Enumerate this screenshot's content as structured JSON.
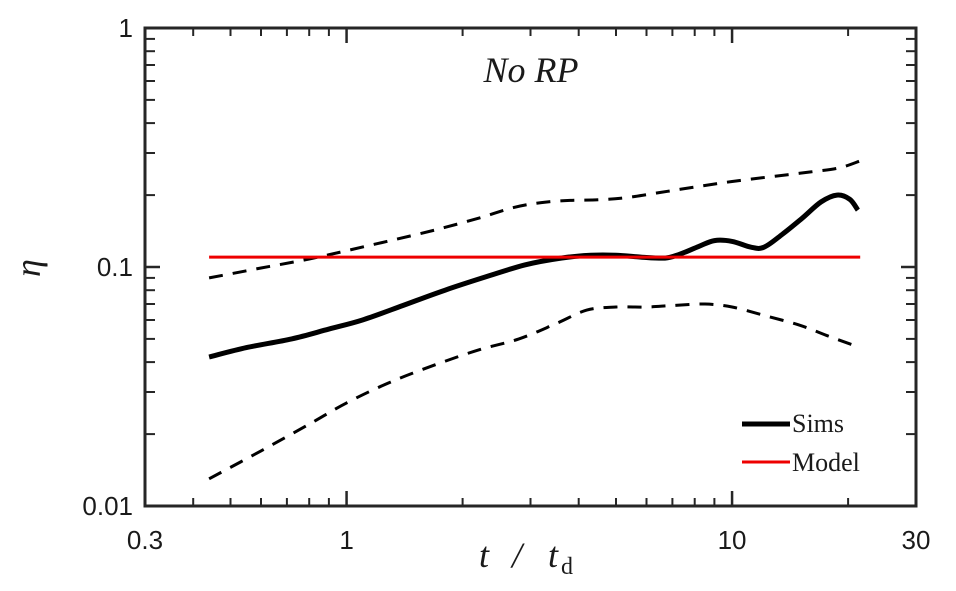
{
  "chart_data": {
    "type": "line",
    "title": "No RP",
    "xlabel_main": "t",
    "xlabel_sep": "/",
    "xlabel_denom": "t",
    "xlabel_sub": "d",
    "ylabel": "η",
    "xscale": "log",
    "yscale": "log",
    "xlim": [
      0.3,
      30
    ],
    "ylim": [
      0.01,
      1
    ],
    "xticks": [
      {
        "value": 0.3,
        "label": "0.3"
      },
      {
        "value": 1,
        "label": "1"
      },
      {
        "value": 10,
        "label": "10"
      },
      {
        "value": 30,
        "label": "30"
      }
    ],
    "yticks": [
      {
        "value": 0.01,
        "label": "0.01"
      },
      {
        "value": 0.1,
        "label": "0.1"
      },
      {
        "value": 1,
        "label": "1"
      }
    ],
    "legend_position": "bottom-right",
    "series": [
      {
        "name": "Sims",
        "style": "solid-thick",
        "color": "#000000",
        "x": [
          0.44,
          0.55,
          0.72,
          0.9,
          1.1,
          1.4,
          1.8,
          2.3,
          2.9,
          3.6,
          4.3,
          5.0,
          5.8,
          6.7,
          7.3,
          8.2,
          9.0,
          10.0,
          11.2,
          12.1,
          13.5,
          15.2,
          17.0,
          18.7,
          20.2,
          21.2
        ],
        "values": [
          0.042,
          0.046,
          0.05,
          0.055,
          0.06,
          0.069,
          0.08,
          0.091,
          0.102,
          0.109,
          0.112,
          0.112,
          0.11,
          0.109,
          0.113,
          0.122,
          0.129,
          0.128,
          0.121,
          0.121,
          0.137,
          0.16,
          0.187,
          0.2,
          0.192,
          0.173
        ]
      },
      {
        "name": "Sims upper",
        "style": "dashed",
        "color": "#000000",
        "x": [
          0.44,
          0.6,
          0.8,
          1.0,
          1.3,
          1.7,
          2.2,
          2.7,
          3.2,
          3.8,
          4.5,
          5.3,
          6.5,
          8.0,
          10.0,
          13.0,
          16.0,
          19.0,
          21.5
        ],
        "values": [
          0.09,
          0.099,
          0.108,
          0.117,
          0.129,
          0.143,
          0.16,
          0.177,
          0.186,
          0.19,
          0.191,
          0.195,
          0.205,
          0.216,
          0.228,
          0.24,
          0.25,
          0.26,
          0.278
        ]
      },
      {
        "name": "Sims lower",
        "style": "dashed",
        "color": "#000000",
        "x": [
          0.44,
          0.6,
          0.8,
          1.0,
          1.3,
          1.7,
          2.2,
          2.8,
          3.5,
          4.2,
          5.0,
          6.0,
          7.0,
          8.5,
          10.0,
          12.0,
          15.0,
          18.0,
          21.5
        ],
        "values": [
          0.013,
          0.017,
          0.022,
          0.027,
          0.033,
          0.039,
          0.045,
          0.05,
          0.058,
          0.066,
          0.068,
          0.068,
          0.069,
          0.07,
          0.068,
          0.063,
          0.057,
          0.051,
          0.046
        ]
      },
      {
        "name": "Model",
        "style": "solid",
        "color": "#ee0000",
        "x": [
          0.44,
          21.5
        ],
        "values": [
          0.11,
          0.11
        ]
      }
    ],
    "legend": [
      {
        "label": "Sims",
        "series": 0
      },
      {
        "label": "Model",
        "series": 3
      }
    ]
  }
}
